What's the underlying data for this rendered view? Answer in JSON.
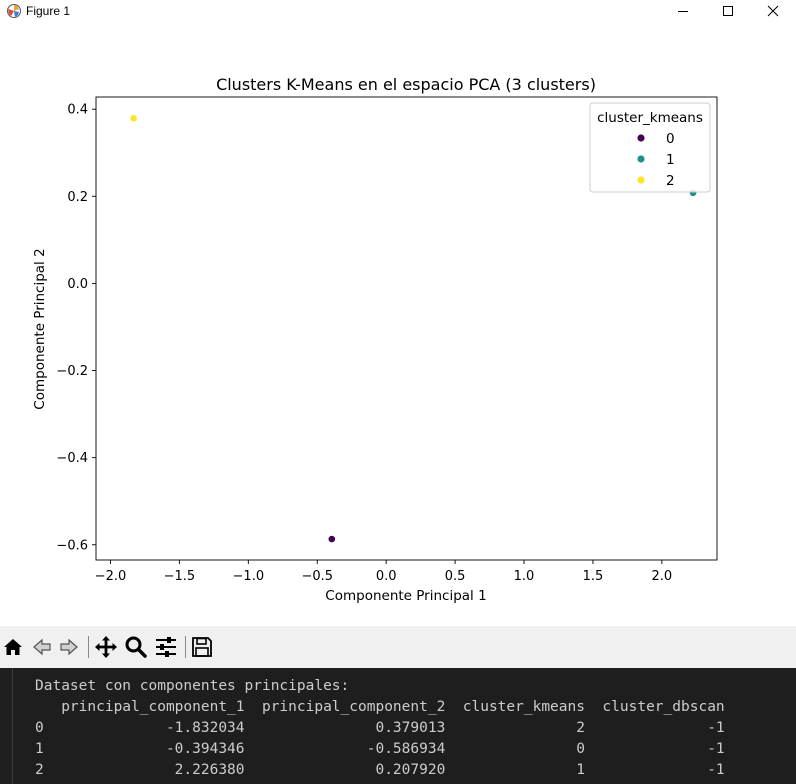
{
  "window": {
    "title": "Figure 1",
    "icon": "matplotlib-icon",
    "controls": [
      "minimize-icon",
      "maximize-icon",
      "close-icon"
    ]
  },
  "chart_data": {
    "type": "scatter",
    "title": "Clusters K-Means en el espacio PCA (3 clusters)",
    "xlabel": "Componente Principal 1",
    "ylabel": "Componente Principal 2",
    "xlim": [
      -2.105,
      2.4
    ],
    "ylim": [
      -0.635,
      0.428
    ],
    "xticks": [
      -2.0,
      -1.5,
      -1.0,
      -0.5,
      0.0,
      0.5,
      1.0,
      1.5,
      2.0
    ],
    "xtick_labels": [
      "−2.0",
      "−1.5",
      "−1.0",
      "−0.5",
      "0.0",
      "0.5",
      "1.0",
      "1.5",
      "2.0"
    ],
    "yticks": [
      0.4,
      0.2,
      0.0,
      -0.2,
      -0.4,
      -0.6
    ],
    "ytick_labels": [
      "0.4",
      "0.2",
      "0.0",
      "−0.2",
      "−0.4",
      "−0.6"
    ],
    "grid": false,
    "legend": {
      "title": "cluster_kmeans",
      "position": "top-right",
      "entries": [
        {
          "label": "0",
          "color": "#440154"
        },
        {
          "label": "1",
          "color": "#21918c"
        },
        {
          "label": "2",
          "color": "#fde725"
        }
      ]
    },
    "points": [
      {
        "x": -1.832034,
        "y": 0.379013,
        "cluster": 2,
        "color": "#fde725"
      },
      {
        "x": -0.394346,
        "y": -0.586934,
        "cluster": 0,
        "color": "#440154"
      },
      {
        "x": 2.22638,
        "y": 0.20792,
        "cluster": 1,
        "color": "#21918c"
      }
    ]
  },
  "toolbar": {
    "icons": [
      "home-icon",
      "back-icon",
      "forward-icon",
      "pan-icon",
      "zoom-icon",
      "configure-subplots-icon",
      "save-icon"
    ]
  },
  "console": {
    "heading": "Dataset con componentes principales:",
    "columns": [
      "principal_component_1",
      "principal_component_2",
      "cluster_kmeans",
      "cluster_dbscan"
    ],
    "rows": [
      {
        "index": "0",
        "values": [
          "-1.832034",
          "0.379013",
          "2",
          "-1"
        ]
      },
      {
        "index": "1",
        "values": [
          "-0.394346",
          "-0.586934",
          "0",
          "-1"
        ]
      },
      {
        "index": "2",
        "values": [
          "2.226380",
          "0.207920",
          "1",
          "-1"
        ]
      }
    ]
  }
}
